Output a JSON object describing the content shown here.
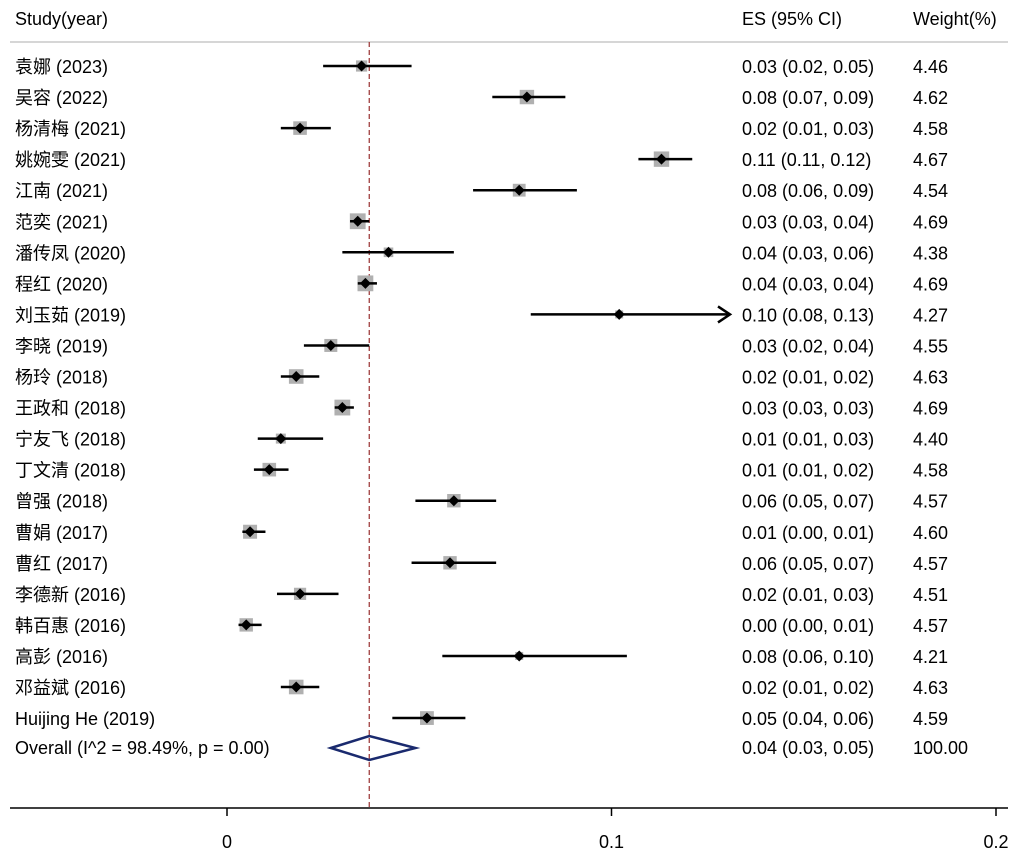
{
  "chart_data": {
    "type": "forest",
    "headers": {
      "study": "Study(year)",
      "es": "ES (95% CI)",
      "weight": "Weight(%)"
    },
    "studies": [
      {
        "label": "袁娜 (2023)",
        "es": 0.035,
        "lo": 0.025,
        "hi": 0.048,
        "es_text": "0.03 (0.02, 0.05)",
        "weight": "4.46"
      },
      {
        "label": "吴容 (2022)",
        "es": 0.078,
        "lo": 0.069,
        "hi": 0.088,
        "es_text": "0.08 (0.07, 0.09)",
        "weight": "4.62"
      },
      {
        "label": "杨清梅 (2021)",
        "es": 0.019,
        "lo": 0.014,
        "hi": 0.027,
        "es_text": "0.02 (0.01, 0.03)",
        "weight": "4.58"
      },
      {
        "label": "姚婉雯 (2021)",
        "es": 0.113,
        "lo": 0.107,
        "hi": 0.121,
        "es_text": "0.11 (0.11, 0.12)",
        "weight": "4.67"
      },
      {
        "label": "江南 (2021)",
        "es": 0.076,
        "lo": 0.064,
        "hi": 0.091,
        "es_text": "0.08 (0.06, 0.09)",
        "weight": "4.54"
      },
      {
        "label": "范奕 (2021)",
        "es": 0.034,
        "lo": 0.032,
        "hi": 0.037,
        "es_text": "0.03 (0.03, 0.04)",
        "weight": "4.69"
      },
      {
        "label": "潘传凤 (2020)",
        "es": 0.042,
        "lo": 0.03,
        "hi": 0.059,
        "es_text": "0.04 (0.03, 0.06)",
        "weight": "4.38"
      },
      {
        "label": "程红 (2020)",
        "es": 0.036,
        "lo": 0.034,
        "hi": 0.039,
        "es_text": "0.04 (0.03, 0.04)",
        "weight": "4.69"
      },
      {
        "label": "刘玉茹 (2019)",
        "es": 0.102,
        "lo": 0.079,
        "hi": 0.131,
        "es_text": "0.10 (0.08, 0.13)",
        "weight": "4.27",
        "arrow": true
      },
      {
        "label": "李晓 (2019)",
        "es": 0.027,
        "lo": 0.02,
        "hi": 0.037,
        "es_text": "0.03 (0.02, 0.04)",
        "weight": "4.55"
      },
      {
        "label": "杨玲 (2018)",
        "es": 0.018,
        "lo": 0.014,
        "hi": 0.024,
        "es_text": "0.02 (0.01, 0.02)",
        "weight": "4.63"
      },
      {
        "label": "王政和 (2018)",
        "es": 0.03,
        "lo": 0.028,
        "hi": 0.033,
        "es_text": "0.03 (0.03, 0.03)",
        "weight": "4.69"
      },
      {
        "label": "宁友飞 (2018)",
        "es": 0.014,
        "lo": 0.008,
        "hi": 0.025,
        "es_text": "0.01 (0.01, 0.03)",
        "weight": "4.40"
      },
      {
        "label": "丁文清 (2018)",
        "es": 0.011,
        "lo": 0.007,
        "hi": 0.016,
        "es_text": "0.01 (0.01, 0.02)",
        "weight": "4.58"
      },
      {
        "label": "曾强 (2018)",
        "es": 0.059,
        "lo": 0.049,
        "hi": 0.07,
        "es_text": "0.06 (0.05, 0.07)",
        "weight": "4.57"
      },
      {
        "label": "曹娟 (2017)",
        "es": 0.006,
        "lo": 0.004,
        "hi": 0.01,
        "es_text": "0.01 (0.00, 0.01)",
        "weight": "4.60"
      },
      {
        "label": "曹红 (2017)",
        "es": 0.058,
        "lo": 0.048,
        "hi": 0.07,
        "es_text": "0.06 (0.05, 0.07)",
        "weight": "4.57"
      },
      {
        "label": "李德新 (2016)",
        "es": 0.019,
        "lo": 0.013,
        "hi": 0.029,
        "es_text": "0.02 (0.01, 0.03)",
        "weight": "4.51"
      },
      {
        "label": "韩百惠 (2016)",
        "es": 0.005,
        "lo": 0.003,
        "hi": 0.009,
        "es_text": "0.00 (0.00, 0.01)",
        "weight": "4.57"
      },
      {
        "label": "高彭 (2016)",
        "es": 0.076,
        "lo": 0.056,
        "hi": 0.104,
        "es_text": "0.08 (0.06, 0.10)",
        "weight": "4.21"
      },
      {
        "label": "邓益斌 (2016)",
        "es": 0.018,
        "lo": 0.014,
        "hi": 0.024,
        "es_text": "0.02 (0.01, 0.02)",
        "weight": "4.63"
      },
      {
        "label": "Huijing He  (2019)",
        "es": 0.052,
        "lo": 0.043,
        "hi": 0.062,
        "es_text": "0.05 (0.04, 0.06)",
        "weight": "4.59"
      }
    ],
    "overall": {
      "label": "Overall  (I^2 = 98.49%, p = 0.00)",
      "es": 0.037,
      "lo": 0.027,
      "hi": 0.049,
      "es_text": "0.04 (0.03, 0.05)",
      "weight": "100.00"
    },
    "x_ticks": [
      {
        "value": 0,
        "label": "0"
      },
      {
        "value": 0.1,
        "label": "0.1"
      },
      {
        "value": 0.2,
        "label": "0.2"
      }
    ],
    "xlim": [
      -0.057,
      0.2
    ],
    "reference_line": 0.037,
    "colors": {
      "marker": "#000000",
      "box": "#b0b0b0",
      "ref_line": "#a04040",
      "diamond": "#1a2a6e",
      "header_rule": "#c8c8c8"
    }
  }
}
